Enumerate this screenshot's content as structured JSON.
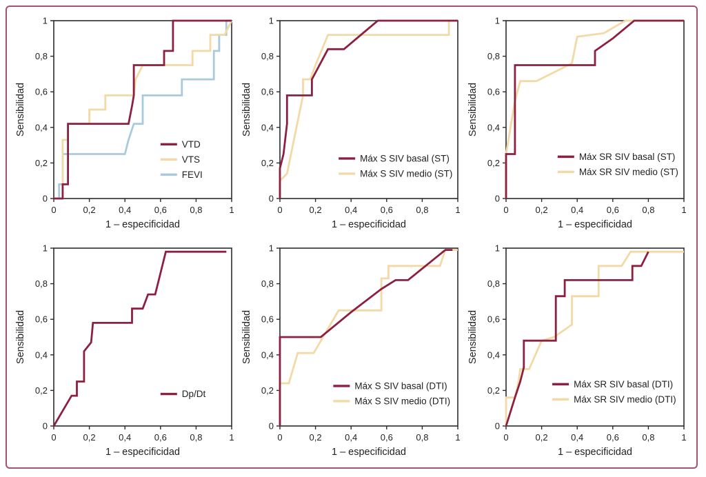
{
  "figure": {
    "name": "roc-curves-figure",
    "background": "#ffffff",
    "border_color": "#a8506a"
  },
  "colors": {
    "dark_red": "#8c2040",
    "tan": "#f3d9a6",
    "light_blue": "#a9c9df",
    "axis": "#2a2a2a",
    "text": "#222222"
  },
  "axis": {
    "xlabel": "1 – especificidad",
    "ylabel": "Sensibilidad",
    "ticks": [
      0,
      0.2,
      0.4,
      0.6,
      0.8,
      1
    ],
    "tick_labels": [
      "0",
      "0,2",
      "0,4",
      "0,6",
      "0,8",
      "1"
    ],
    "xlim": [
      0,
      1
    ],
    "ylim": [
      0,
      1
    ]
  },
  "chart_data": [
    {
      "type": "line",
      "id": "roc-vtd-vts-fevi",
      "xlabel": "1 – especificidad",
      "ylabel": "Sensibilidad",
      "legend": {
        "fx": 0.6,
        "fy": 0.695
      },
      "series": [
        {
          "name": "VTD",
          "color": "dark_red",
          "points": [
            [
              0,
              0
            ],
            [
              0.05,
              0
            ],
            [
              0.05,
              0.08
            ],
            [
              0.08,
              0.08
            ],
            [
              0.08,
              0.42
            ],
            [
              0.42,
              0.42
            ],
            [
              0.44,
              0.52
            ],
            [
              0.45,
              0.58
            ],
            [
              0.45,
              0.75
            ],
            [
              0.62,
              0.75
            ],
            [
              0.62,
              0.83
            ],
            [
              0.67,
              0.83
            ],
            [
              0.67,
              1
            ],
            [
              1,
              1
            ]
          ]
        },
        {
          "name": "VTS",
          "color": "tan",
          "points": [
            [
              0,
              0
            ],
            [
              0.05,
              0
            ],
            [
              0.05,
              0.33
            ],
            [
              0.08,
              0.33
            ],
            [
              0.08,
              0.42
            ],
            [
              0.2,
              0.42
            ],
            [
              0.2,
              0.5
            ],
            [
              0.29,
              0.5
            ],
            [
              0.29,
              0.58
            ],
            [
              0.45,
              0.58
            ],
            [
              0.46,
              0.67
            ],
            [
              0.5,
              0.75
            ],
            [
              0.78,
              0.75
            ],
            [
              0.78,
              0.83
            ],
            [
              0.88,
              0.83
            ],
            [
              0.88,
              0.92
            ],
            [
              0.96,
              0.92
            ],
            [
              1,
              1
            ]
          ]
        },
        {
          "name": "FEVI",
          "color": "light_blue",
          "points": [
            [
              0,
              0
            ],
            [
              0.03,
              0
            ],
            [
              0.03,
              0.08
            ],
            [
              0.05,
              0.08
            ],
            [
              0.05,
              0.25
            ],
            [
              0.4,
              0.25
            ],
            [
              0.42,
              0.33
            ],
            [
              0.45,
              0.42
            ],
            [
              0.5,
              0.42
            ],
            [
              0.5,
              0.58
            ],
            [
              0.72,
              0.58
            ],
            [
              0.72,
              0.67
            ],
            [
              0.9,
              0.67
            ],
            [
              0.9,
              0.83
            ],
            [
              0.93,
              0.83
            ],
            [
              0.93,
              0.92
            ],
            [
              0.97,
              0.92
            ],
            [
              0.97,
              1
            ],
            [
              1,
              1
            ]
          ]
        }
      ]
    },
    {
      "type": "line",
      "id": "roc-max-s-siv-st",
      "xlabel": "1 – especificidad",
      "ylabel": "Sensibilidad",
      "legend": {
        "fx": 0.33,
        "fy": 0.775
      },
      "series": [
        {
          "name": "Máx S SIV basal (ST)",
          "color": "dark_red",
          "points": [
            [
              0,
              0
            ],
            [
              0,
              0.17
            ],
            [
              0.02,
              0.25
            ],
            [
              0.04,
              0.42
            ],
            [
              0.04,
              0.58
            ],
            [
              0.18,
              0.58
            ],
            [
              0.18,
              0.67
            ],
            [
              0.27,
              0.84
            ],
            [
              0.36,
              0.84
            ],
            [
              0.55,
              1
            ],
            [
              1,
              1
            ]
          ]
        },
        {
          "name": "Máx S SIV medio (ST)",
          "color": "tan",
          "points": [
            [
              0,
              0
            ],
            [
              0,
              0.1
            ],
            [
              0.04,
              0.14
            ],
            [
              0.13,
              0.58
            ],
            [
              0.13,
              0.67
            ],
            [
              0.17,
              0.67
            ],
            [
              0.2,
              0.75
            ],
            [
              0.27,
              0.92
            ],
            [
              0.95,
              0.92
            ],
            [
              0.95,
              1
            ],
            [
              1,
              1
            ]
          ]
        }
      ]
    },
    {
      "type": "line",
      "id": "roc-max-sr-siv-st",
      "xlabel": "1 – especificidad",
      "ylabel": "Sensibilidad",
      "legend": {
        "fx": 0.29,
        "fy": 0.765
      },
      "series": [
        {
          "name": "Máx SR SIV basal (ST)",
          "color": "dark_red",
          "points": [
            [
              0,
              0
            ],
            [
              0,
              0.25
            ],
            [
              0.05,
              0.25
            ],
            [
              0.05,
              0.75
            ],
            [
              0.5,
              0.75
            ],
            [
              0.5,
              0.83
            ],
            [
              0.6,
              0.9
            ],
            [
              0.72,
              1
            ],
            [
              1,
              1
            ]
          ]
        },
        {
          "name": "Máx SR SIV medio (ST)",
          "color": "tan",
          "points": [
            [
              0,
              0
            ],
            [
              0,
              0.25
            ],
            [
              0.05,
              0.55
            ],
            [
              0.08,
              0.66
            ],
            [
              0.17,
              0.66
            ],
            [
              0.37,
              0.76
            ],
            [
              0.4,
              0.91
            ],
            [
              0.55,
              0.93
            ],
            [
              0.67,
              1
            ],
            [
              1,
              1
            ]
          ]
        }
      ]
    },
    {
      "type": "line",
      "id": "roc-dp-dt",
      "xlabel": "1 – especificidad",
      "ylabel": "Sensibilidad",
      "legend": {
        "fx": 0.6,
        "fy": 0.82
      },
      "series": [
        {
          "name": "Dp/Dt",
          "color": "dark_red",
          "points": [
            [
              0,
              0
            ],
            [
              0.1,
              0.17
            ],
            [
              0.13,
              0.17
            ],
            [
              0.13,
              0.25
            ],
            [
              0.17,
              0.25
            ],
            [
              0.17,
              0.42
            ],
            [
              0.21,
              0.47
            ],
            [
              0.22,
              0.58
            ],
            [
              0.44,
              0.58
            ],
            [
              0.44,
              0.66
            ],
            [
              0.5,
              0.66
            ],
            [
              0.53,
              0.74
            ],
            [
              0.57,
              0.74
            ],
            [
              0.63,
              0.98
            ],
            [
              0.97,
              0.98
            ]
          ]
        }
      ]
    },
    {
      "type": "line",
      "id": "roc-max-s-siv-dti",
      "xlabel": "1 – especificidad",
      "ylabel": "Sensibilidad",
      "legend": {
        "fx": 0.3,
        "fy": 0.775
      },
      "series": [
        {
          "name": "Máx S SIV basal (DTI)",
          "color": "dark_red",
          "points": [
            [
              0,
              0
            ],
            [
              0,
              0.5
            ],
            [
              0.23,
              0.5
            ],
            [
              0.4,
              0.64
            ],
            [
              0.57,
              0.77
            ],
            [
              0.65,
              0.82
            ],
            [
              0.72,
              0.82
            ],
            [
              0.93,
              0.99
            ],
            [
              0.97,
              0.99
            ]
          ]
        },
        {
          "name": "Máx S SIV medio (DTI)",
          "color": "tan",
          "points": [
            [
              0,
              0
            ],
            [
              0,
              0.24
            ],
            [
              0.05,
              0.24
            ],
            [
              0.1,
              0.41
            ],
            [
              0.19,
              0.41
            ],
            [
              0.33,
              0.65
            ],
            [
              0.57,
              0.65
            ],
            [
              0.57,
              0.83
            ],
            [
              0.61,
              0.83
            ],
            [
              0.61,
              0.9
            ],
            [
              0.9,
              0.9
            ],
            [
              0.93,
              0.99
            ],
            [
              1,
              0.99
            ]
          ]
        }
      ]
    },
    {
      "type": "line",
      "id": "roc-max-sr-siv-dti",
      "xlabel": "1 – especificidad",
      "ylabel": "Sensibilidad",
      "legend": {
        "fx": 0.26,
        "fy": 0.765
      },
      "series": [
        {
          "name": "Máx SR SIV basal (DTI)",
          "color": "dark_red",
          "points": [
            [
              0,
              0
            ],
            [
              0.05,
              0.16
            ],
            [
              0.08,
              0.25
            ],
            [
              0.1,
              0.33
            ],
            [
              0.1,
              0.48
            ],
            [
              0.28,
              0.48
            ],
            [
              0.28,
              0.73
            ],
            [
              0.33,
              0.73
            ],
            [
              0.33,
              0.82
            ],
            [
              0.71,
              0.82
            ],
            [
              0.71,
              0.9
            ],
            [
              0.76,
              0.9
            ],
            [
              0.8,
              0.98
            ]
          ]
        },
        {
          "name": "Máx SR SIV medio (DTI)",
          "color": "tan",
          "points": [
            [
              0,
              0
            ],
            [
              0,
              0.16
            ],
            [
              0.05,
              0.16
            ],
            [
              0.07,
              0.25
            ],
            [
              0.08,
              0.32
            ],
            [
              0.13,
              0.32
            ],
            [
              0.2,
              0.48
            ],
            [
              0.27,
              0.5
            ],
            [
              0.37,
              0.57
            ],
            [
              0.37,
              0.73
            ],
            [
              0.52,
              0.73
            ],
            [
              0.52,
              0.9
            ],
            [
              0.65,
              0.9
            ],
            [
              0.7,
              0.98
            ],
            [
              1,
              0.98
            ]
          ]
        }
      ]
    }
  ]
}
